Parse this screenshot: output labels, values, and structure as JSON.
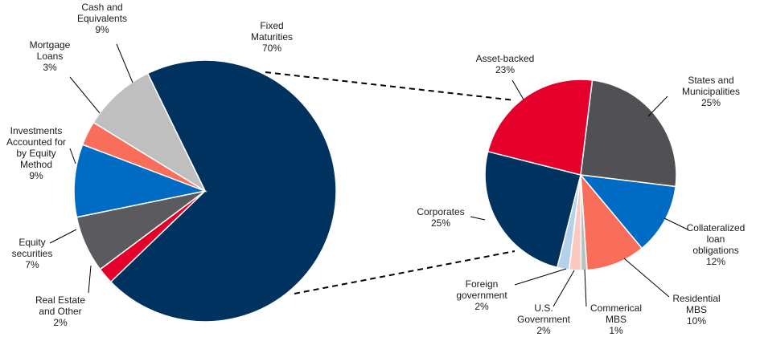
{
  "chart_data": [
    {
      "type": "pie",
      "title": "",
      "slices": [
        {
          "label": "Fixed Maturities",
          "value": 70,
          "color": "#00325F"
        },
        {
          "label": "Real Estate and Other",
          "value": 2,
          "color": "#E4002B"
        },
        {
          "label": "Equity securities",
          "value": 7,
          "color": "#5A5A5F"
        },
        {
          "label": "Investments Accounted for by Equity Method",
          "value": 9,
          "color": "#006BC2"
        },
        {
          "label": "Mortgage Loans",
          "value": 3,
          "color": "#F96D5B"
        },
        {
          "label": "Cash and Equivalents",
          "value": 9,
          "color": "#BFBFBF"
        }
      ],
      "label_lines": [
        {
          "slice": 0,
          "lines": [
            "Fixed",
            "Maturities",
            "70%"
          ]
        },
        {
          "slice": 1,
          "lines": [
            "Real Estate",
            "and Other",
            "2%"
          ]
        },
        {
          "slice": 2,
          "lines": [
            "Equity",
            "securities",
            "7%"
          ]
        },
        {
          "slice": 3,
          "lines": [
            "Investments",
            "Accounted for",
            "by Equity",
            "Method",
            "9%"
          ]
        },
        {
          "slice": 4,
          "lines": [
            "Mortgage",
            "Loans",
            "3%"
          ]
        },
        {
          "slice": 5,
          "lines": [
            "Cash and",
            "Equivalents",
            "9%"
          ]
        }
      ]
    },
    {
      "type": "pie",
      "title": "",
      "exploded_from": "Fixed Maturities",
      "slices": [
        {
          "label": "States and Municipalities",
          "value": 25,
          "color": "#505055"
        },
        {
          "label": "Collateralized loan obligations",
          "value": 12,
          "color": "#006BC2"
        },
        {
          "label": "Residential MBS",
          "value": 10,
          "color": "#F96D5B"
        },
        {
          "label": "Commerical MBS",
          "value": 1,
          "color": "#BFBFBF"
        },
        {
          "label": "U.S. Government",
          "value": 2,
          "color": "#F9C9C2"
        },
        {
          "label": "Foreign government",
          "value": 2,
          "color": "#B4D1EA"
        },
        {
          "label": "Corporates",
          "value": 25,
          "color": "#00325F"
        },
        {
          "label": "Asset-backed",
          "value": 23,
          "color": "#E4002B"
        }
      ],
      "label_lines": [
        {
          "slice": 0,
          "lines": [
            "States and",
            "Municipalities",
            "25%"
          ]
        },
        {
          "slice": 1,
          "lines": [
            "Collateralized",
            "loan",
            "obligations",
            "12%"
          ]
        },
        {
          "slice": 2,
          "lines": [
            "Residential",
            "MBS",
            "10%"
          ]
        },
        {
          "slice": 3,
          "lines": [
            "Commerical",
            "MBS",
            "1%"
          ]
        },
        {
          "slice": 4,
          "lines": [
            "U.S.",
            "Government",
            "2%"
          ]
        },
        {
          "slice": 5,
          "lines": [
            "Foreign",
            "government",
            "2%"
          ]
        },
        {
          "slice": 6,
          "lines": [
            "Corporates",
            "25%"
          ]
        },
        {
          "slice": 7,
          "lines": [
            "Asset-backed",
            "23%"
          ]
        }
      ]
    }
  ]
}
